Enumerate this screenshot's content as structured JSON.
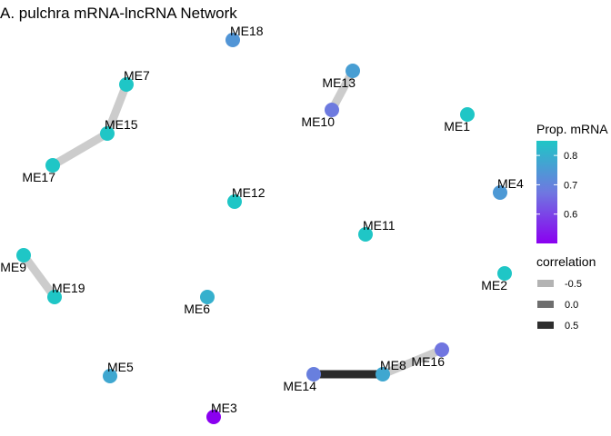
{
  "title": "A. pulchra mRNA-lncRNA Network",
  "colors": {
    "low": "#8a00f0",
    "mid": "#6f78e0",
    "high": "#1fc6c6"
  },
  "chart_data": {
    "type": "network",
    "nodes": [
      {
        "id": "ME1",
        "label": "ME1",
        "prop_mrna": 0.85,
        "label_pos": "below-left"
      },
      {
        "id": "ME2",
        "label": "ME2",
        "prop_mrna": 0.86,
        "label_pos": "below-left"
      },
      {
        "id": "ME3",
        "label": "ME3",
        "prop_mrna": 0.5,
        "label_pos": "above-right"
      },
      {
        "id": "ME4",
        "label": "ME4",
        "prop_mrna": 0.75,
        "label_pos": "above-right"
      },
      {
        "id": "ME5",
        "label": "ME5",
        "prop_mrna": 0.78,
        "label_pos": "above-right"
      },
      {
        "id": "ME6",
        "label": "ME6",
        "prop_mrna": 0.8,
        "label_pos": "below-left"
      },
      {
        "id": "ME7",
        "label": "ME7",
        "prop_mrna": 0.85,
        "label_pos": "above-right"
      },
      {
        "id": "ME8",
        "label": "ME8",
        "prop_mrna": 0.78,
        "label_pos": "above-right"
      },
      {
        "id": "ME9",
        "label": "ME9",
        "prop_mrna": 0.85,
        "label_pos": "below-left"
      },
      {
        "id": "ME10",
        "label": "ME10",
        "prop_mrna": 0.68,
        "label_pos": "below-left"
      },
      {
        "id": "ME11",
        "label": "ME11",
        "prop_mrna": 0.85,
        "label_pos": "above-right"
      },
      {
        "id": "ME12",
        "label": "ME12",
        "prop_mrna": 0.86,
        "label_pos": "above-right"
      },
      {
        "id": "ME13",
        "label": "ME13",
        "prop_mrna": 0.76,
        "label_pos": "below-left"
      },
      {
        "id": "ME14",
        "label": "ME14",
        "prop_mrna": 0.69,
        "label_pos": "below-left"
      },
      {
        "id": "ME15",
        "label": "ME15",
        "prop_mrna": 0.85,
        "label_pos": "above-right"
      },
      {
        "id": "ME16",
        "label": "ME16",
        "prop_mrna": 0.67,
        "label_pos": "below-left"
      },
      {
        "id": "ME17",
        "label": "ME17",
        "prop_mrna": 0.85,
        "label_pos": "below-left"
      },
      {
        "id": "ME18",
        "label": "ME18",
        "prop_mrna": 0.74,
        "label_pos": "above-right"
      },
      {
        "id": "ME19",
        "label": "ME19",
        "prop_mrna": 0.86,
        "label_pos": "above-right"
      }
    ],
    "edges": [
      {
        "from": "ME7",
        "to": "ME15",
        "correlation": -0.8
      },
      {
        "from": "ME15",
        "to": "ME17",
        "correlation": -0.8
      },
      {
        "from": "ME13",
        "to": "ME10",
        "correlation": -0.8
      },
      {
        "from": "ME9",
        "to": "ME19",
        "correlation": -0.8
      },
      {
        "from": "ME14",
        "to": "ME8",
        "correlation": 0.7
      },
      {
        "from": "ME8",
        "to": "ME16",
        "correlation": -0.8
      }
    ],
    "color_legend": {
      "title": "Prop. mRNA",
      "ticks": [
        "0.8",
        "0.7",
        "0.6"
      ],
      "tick_values": [
        0.8,
        0.7,
        0.6
      ],
      "range": [
        0.5,
        0.85
      ]
    },
    "edge_legend": {
      "title": "correlation",
      "entries": [
        {
          "label": "-0.5",
          "value": -0.5,
          "color": "#b3b3b3"
        },
        {
          "label": "0.0",
          "value": 0.0,
          "color": "#6e6e6e"
        },
        {
          "label": "0.5",
          "value": 0.5,
          "color": "#2e2e2e"
        }
      ]
    }
  }
}
